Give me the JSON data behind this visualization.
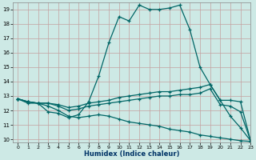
{
  "xlabel": "Humidex (Indice chaleur)",
  "bg_color": "#cde9e5",
  "line_color": "#006666",
  "xlim": [
    -0.5,
    23
  ],
  "ylim": [
    9.8,
    19.5
  ],
  "xticks": [
    0,
    1,
    2,
    3,
    4,
    5,
    6,
    7,
    8,
    9,
    10,
    11,
    12,
    13,
    14,
    15,
    16,
    17,
    18,
    19,
    20,
    21,
    22,
    23
  ],
  "yticks": [
    10,
    11,
    12,
    13,
    14,
    15,
    16,
    17,
    18,
    19
  ],
  "lines": [
    {
      "x": [
        0,
        1,
        2,
        3,
        4,
        5,
        6,
        7,
        8,
        9,
        10,
        11,
        12,
        13,
        14,
        15,
        16,
        17,
        18,
        19,
        20,
        21,
        22,
        23
      ],
      "y": [
        12.8,
        12.6,
        12.5,
        11.9,
        11.8,
        11.5,
        11.7,
        12.6,
        14.4,
        16.7,
        18.5,
        18.2,
        19.3,
        19.0,
        19.0,
        19.1,
        19.3,
        17.6,
        15.0,
        13.8,
        12.7,
        11.6,
        10.8,
        9.9
      ]
    },
    {
      "x": [
        0,
        1,
        2,
        3,
        4,
        5,
        6,
        7,
        8,
        9,
        10,
        11,
        12,
        13,
        14,
        15,
        16,
        17,
        18,
        19,
        20,
        21,
        22,
        23
      ],
      "y": [
        12.8,
        12.6,
        12.5,
        12.5,
        12.4,
        12.2,
        12.3,
        12.5,
        12.6,
        12.7,
        12.9,
        13.0,
        13.1,
        13.2,
        13.3,
        13.3,
        13.4,
        13.5,
        13.6,
        13.8,
        12.7,
        12.7,
        12.6,
        9.9
      ]
    },
    {
      "x": [
        0,
        1,
        2,
        3,
        4,
        5,
        6,
        7,
        8,
        9,
        10,
        11,
        12,
        13,
        14,
        15,
        16,
        17,
        18,
        19,
        20,
        21,
        22,
        23
      ],
      "y": [
        12.8,
        12.6,
        12.5,
        12.5,
        12.3,
        12.0,
        12.1,
        12.3,
        12.4,
        12.5,
        12.6,
        12.7,
        12.8,
        12.9,
        13.0,
        13.0,
        13.1,
        13.1,
        13.2,
        13.5,
        12.4,
        12.3,
        11.9,
        9.9
      ]
    },
    {
      "x": [
        0,
        1,
        2,
        3,
        4,
        5,
        6,
        7,
        8,
        9,
        10,
        11,
        12,
        13,
        14,
        15,
        16,
        17,
        18,
        19,
        20,
        21,
        22,
        23
      ],
      "y": [
        12.8,
        12.5,
        12.5,
        12.3,
        12.0,
        11.6,
        11.5,
        11.6,
        11.7,
        11.6,
        11.4,
        11.2,
        11.1,
        11.0,
        10.9,
        10.7,
        10.6,
        10.5,
        10.3,
        10.2,
        10.1,
        10.0,
        9.9,
        9.85
      ]
    }
  ]
}
